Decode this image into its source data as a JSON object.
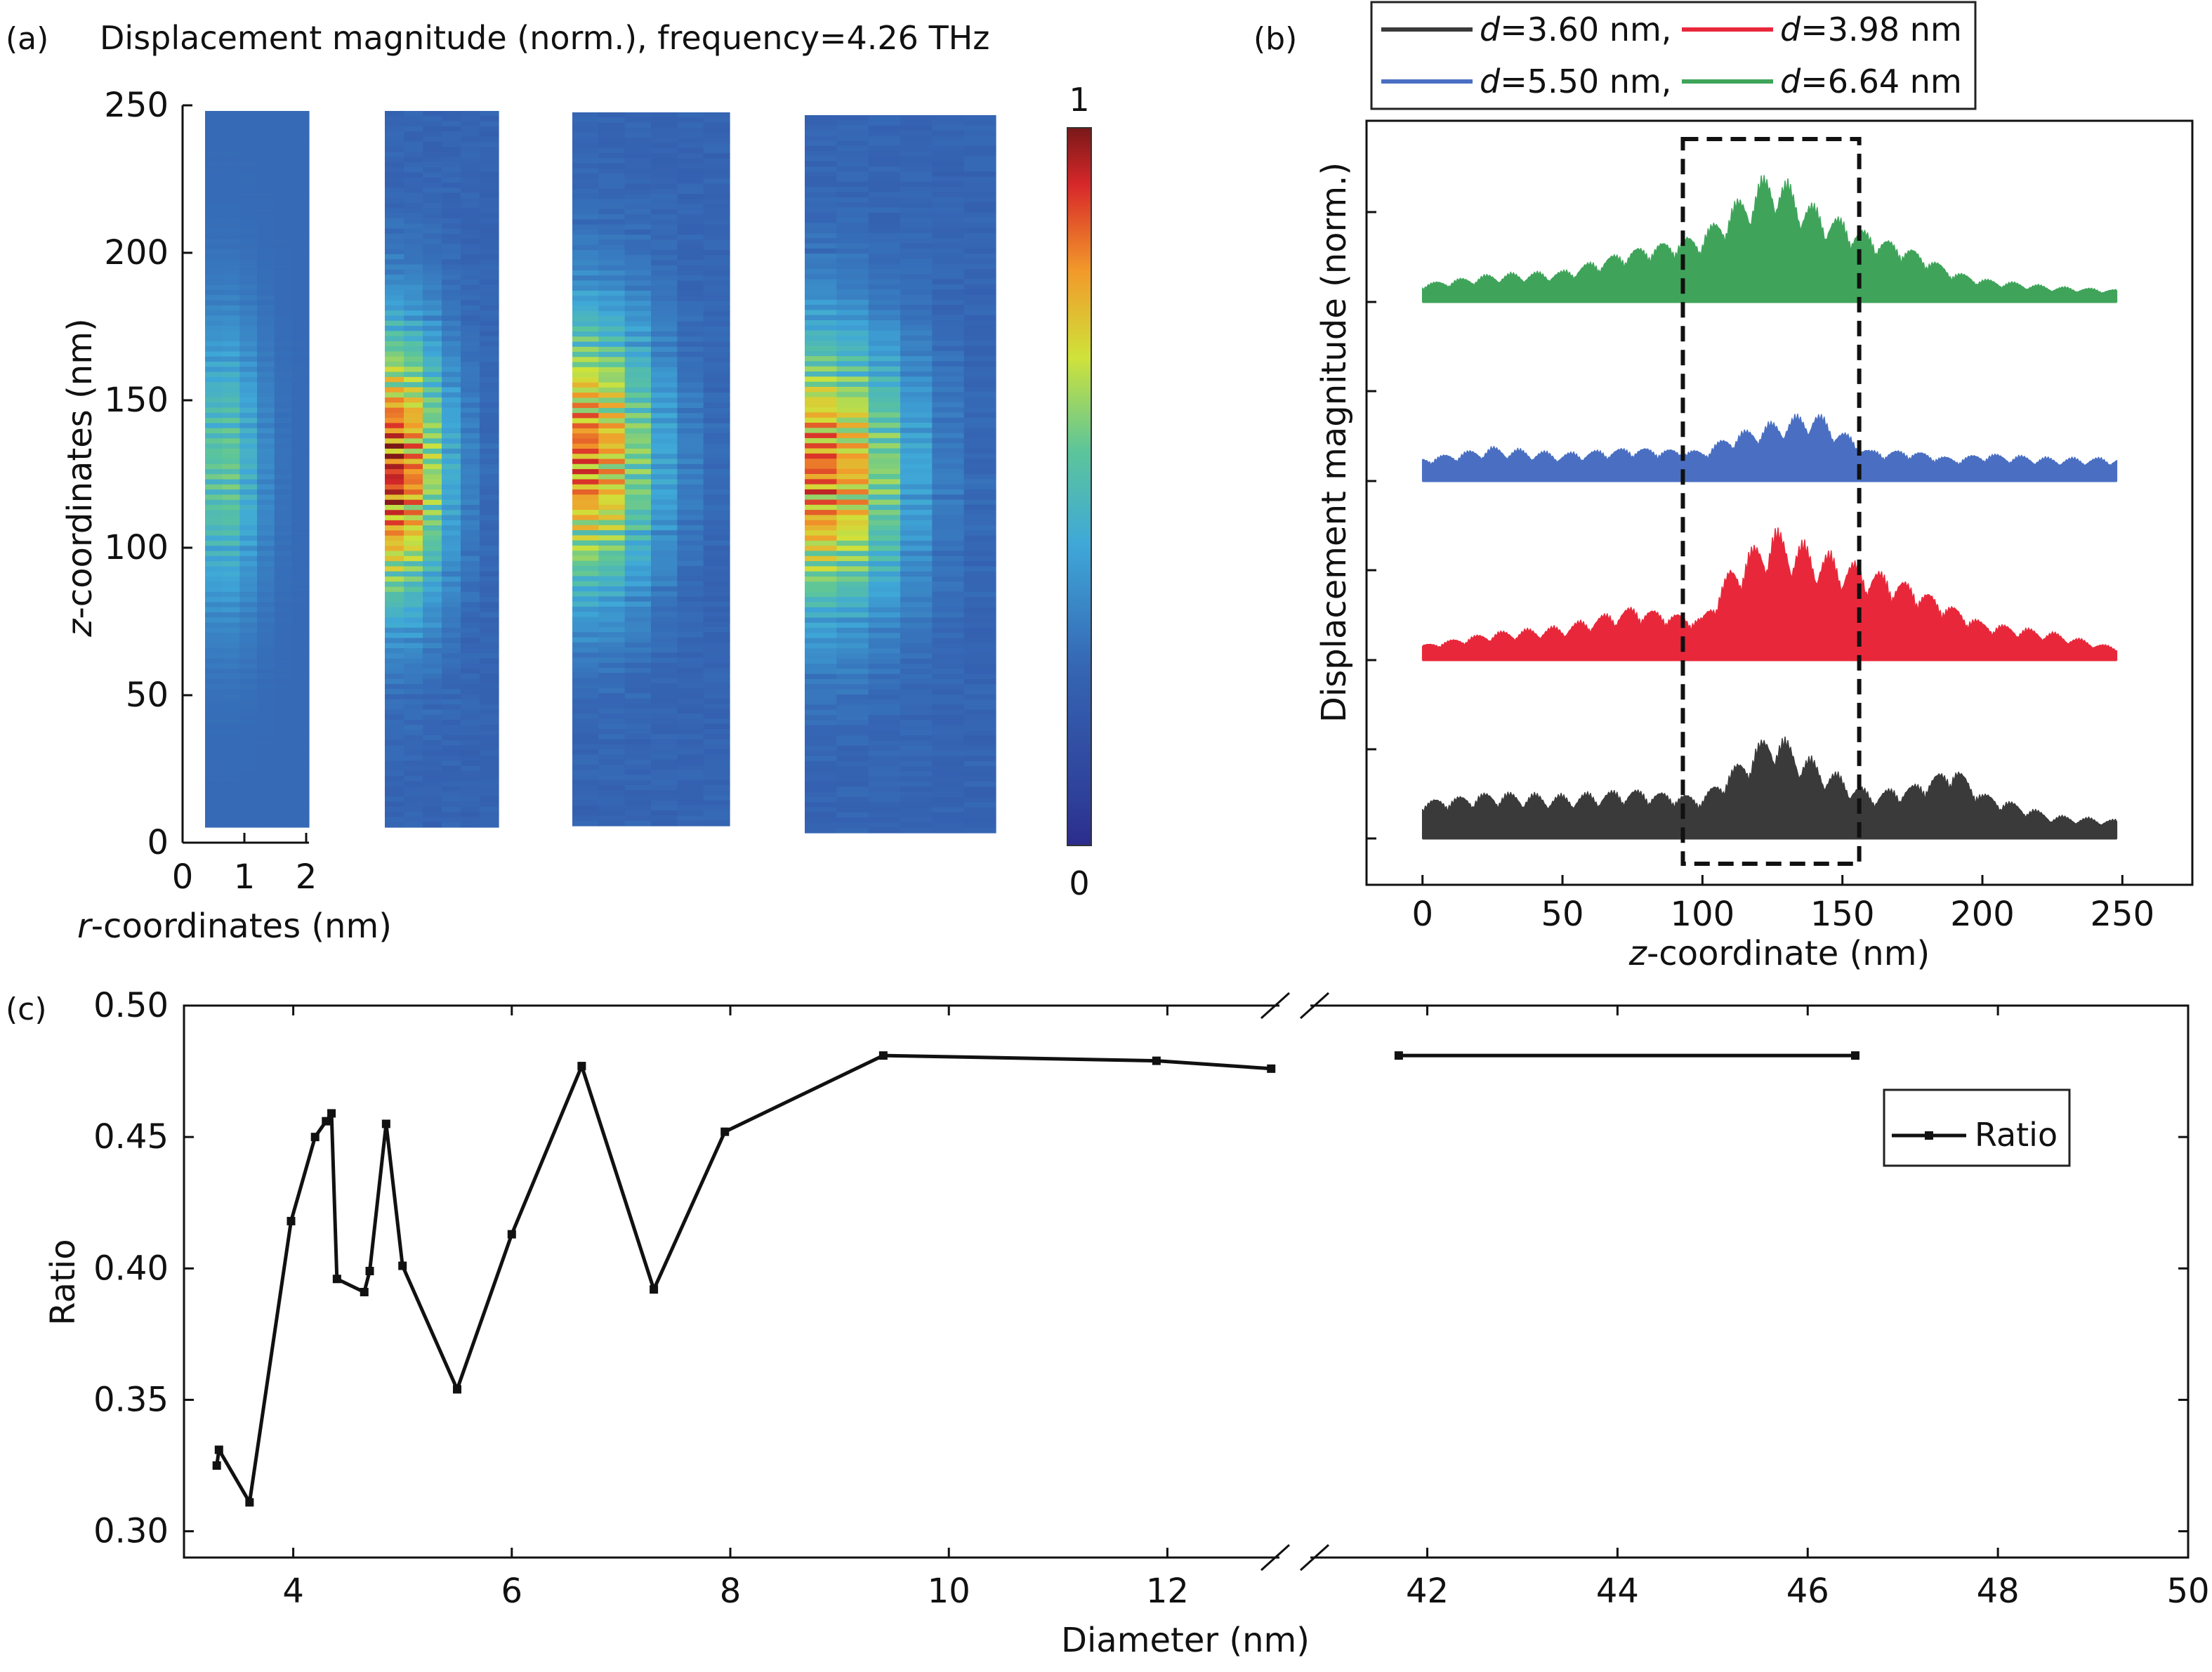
{
  "panel_a": {
    "label": "(a)",
    "title": "Displacement magnitude (norm.), frequency=4.26 THz",
    "ylabel_italic": "z",
    "ylabel_rest": "-coordinates (nm)",
    "xlabel_italic": "r",
    "xlabel_rest": "-coordinates (nm)",
    "yticks": [
      "0",
      "50",
      "100",
      "150",
      "200",
      "250"
    ],
    "xticks": [
      "0",
      "1",
      "2"
    ],
    "colorbar_max": "1",
    "colorbar_min": "0"
  },
  "panel_b": {
    "label": "(b)",
    "ylabel": "Displacement magnitude (norm.)",
    "xlabel_italic": "z",
    "xlabel_rest": "-coordinate (nm)",
    "xticks": [
      "0",
      "50",
      "100",
      "150",
      "200",
      "250"
    ],
    "legend": [
      {
        "prefix": "d",
        "text": "=3.60 nm,",
        "color": "#3a3a3a"
      },
      {
        "prefix": "d",
        "text": "=3.98 nm",
        "color": "#e8283a"
      },
      {
        "prefix": "d",
        "text": "=5.50 nm,",
        "color": "#4a6fc2"
      },
      {
        "prefix": "d",
        "text": "=6.64 nm",
        "color": "#3fa45a"
      }
    ]
  },
  "panel_c": {
    "label": "(c)",
    "xlabel": "Diameter (nm)",
    "ylabel": "Ratio",
    "legend_label": "Ratio",
    "yticks": [
      "0.30",
      "0.35",
      "0.40",
      "0.45",
      "0.50"
    ],
    "xticks_left": [
      "4",
      "6",
      "8",
      "10",
      "12"
    ],
    "xticks_right": [
      "42",
      "44",
      "46",
      "48",
      "50"
    ]
  },
  "chart_data": [
    {
      "type": "heatmap",
      "panel": "(a)",
      "title": "Displacement magnitude (norm.), frequency=4.26 THz",
      "xlabel": "r-coordinates (nm)",
      "ylabel": "z-coordinates (nm)",
      "ylim": [
        0,
        250
      ],
      "xlim": [
        0,
        2
      ],
      "colorscale_range": [
        0,
        1
      ],
      "colormap": "jet",
      "maps": [
        {
          "peak_z": 125,
          "peak_value": 0.55
        },
        {
          "peak_z": 125,
          "peak_value": 1.0
        },
        {
          "peak_z": 130,
          "peak_value": 0.9
        },
        {
          "peak_z": 125,
          "peak_value": 0.9
        }
      ]
    },
    {
      "type": "area",
      "panel": "(b)",
      "xlabel": "z-coordinate (nm)",
      "ylabel": "Displacement magnitude (norm.)",
      "xlim": [
        -20,
        275
      ],
      "highlight_region_z": [
        93,
        156
      ],
      "series": [
        {
          "name": "d=3.60 nm",
          "color": "#3a3a3a",
          "profile": {
            "z": [
              0,
              25,
              50,
              75,
              100,
              110,
              125,
              140,
              160,
              175,
              190,
              200,
              225,
              248
            ],
            "value": [
              0.25,
              0.3,
              0.28,
              0.32,
              0.28,
              0.45,
              0.7,
              0.5,
              0.3,
              0.35,
              0.48,
              0.3,
              0.15,
              0.12
            ]
          }
        },
        {
          "name": "d=3.98 nm",
          "color": "#e8283a",
          "profile": {
            "z": [
              0,
              25,
              50,
              75,
              100,
              110,
              125,
              140,
              160,
              175,
              190,
              200,
              225,
              248
            ],
            "value": [
              0.1,
              0.18,
              0.22,
              0.35,
              0.28,
              0.6,
              0.85,
              0.72,
              0.6,
              0.5,
              0.35,
              0.25,
              0.18,
              0.08
            ]
          }
        },
        {
          "name": "d=5.50 nm",
          "color": "#4a6fc2",
          "profile": {
            "z": [
              0,
              25,
              50,
              75,
              100,
              110,
              125,
              140,
              160,
              175,
              190,
              200,
              225,
              248
            ],
            "value": [
              0.15,
              0.22,
              0.18,
              0.22,
              0.2,
              0.3,
              0.38,
              0.45,
              0.2,
              0.2,
              0.15,
              0.18,
              0.15,
              0.15
            ]
          }
        },
        {
          "name": "d=6.64 nm",
          "color": "#3fa45a",
          "profile": {
            "z": [
              0,
              25,
              50,
              75,
              100,
              110,
              125,
              140,
              160,
              175,
              190,
              200,
              225,
              248
            ],
            "value": [
              0.12,
              0.18,
              0.2,
              0.35,
              0.45,
              0.62,
              0.85,
              0.62,
              0.45,
              0.35,
              0.2,
              0.15,
              0.1,
              0.08
            ]
          }
        }
      ]
    },
    {
      "type": "line",
      "panel": "(c)",
      "xlabel": "Diameter (nm)",
      "ylabel": "Ratio",
      "ylim": [
        0.29,
        0.5
      ],
      "broken_x_axis": {
        "left": [
          3,
          13
        ],
        "right": [
          40.8,
          50
        ]
      },
      "series": [
        {
          "name": "Ratio",
          "x": [
            3.3,
            3.32,
            3.6,
            3.98,
            4.2,
            4.3,
            4.35,
            4.4,
            4.65,
            4.7,
            4.85,
            5.0,
            5.5,
            6.0,
            6.64,
            7.3,
            7.95,
            9.4,
            11.9,
            12.95,
            41.7,
            46.5
          ],
          "y": [
            0.325,
            0.331,
            0.311,
            0.418,
            0.45,
            0.456,
            0.459,
            0.396,
            0.391,
            0.399,
            0.455,
            0.401,
            0.354,
            0.413,
            0.477,
            0.392,
            0.452,
            0.481,
            0.479,
            0.476,
            0.481,
            0.481
          ]
        }
      ]
    }
  ]
}
